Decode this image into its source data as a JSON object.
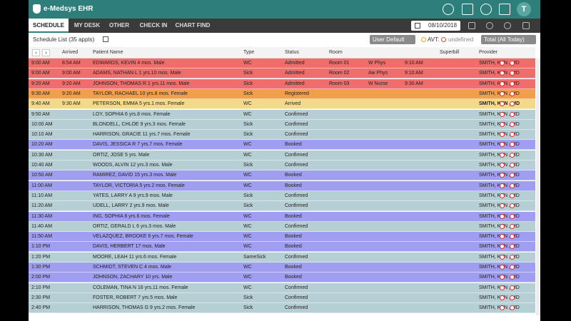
{
  "header": {
    "title": "e-Medsys EHR",
    "user_initial": "T",
    "date": "08/10/2018",
    "tabs": [
      "SCHEDULE",
      "MY DESK",
      "OTHER",
      "CHECK IN",
      "CHART FIND"
    ]
  },
  "toolbar": {
    "list_title": "Schedule List (35 appts)",
    "view": "User Default",
    "avt_label": "AVT:",
    "avt_value": "undefined",
    "filter": "Total (All Today)"
  },
  "columns": {
    "arrived": "Arrived",
    "patient": "Patient Name",
    "type": "Type",
    "status": "Status",
    "room": "Room",
    "superbill": "Superbill",
    "provider": "Provider"
  },
  "rows": [
    {
      "time": "9:00 AM",
      "arrived": "8:54 AM",
      "patient": "EDWARDS, KEVIN 4 mos. Male",
      "type": "WC",
      "status": "Admitted",
      "room": "Room 01",
      "role": "W Phys",
      "room_time": "9:10 AM",
      "provider": "SMITH, KEN , MD"
    },
    {
      "time": "9:00 AM",
      "arrived": "9:00 AM",
      "patient": "ADAMS, NATHAN L 1 yrs.10 mos. Male",
      "type": "Sick",
      "status": "Admitted",
      "room": "Room 02",
      "role": "Aw Phys",
      "room_time": "9:10 AM",
      "provider": "SMITH, KEN , MD"
    },
    {
      "time": "9:20 AM",
      "arrived": "9:20 AM",
      "patient": "JOHNSON, THOMAS R 1 yrs.11 mos. Male",
      "type": "Sick",
      "status": "Admitted",
      "room": "Room 03",
      "role": "W Nurse",
      "room_time": "9:30 AM",
      "provider": "SMITH, KEN , MD"
    },
    {
      "time": "9:30 AM",
      "arrived": "9:20 AM",
      "patient": "TAYLOR, RACHAEL 10 yrs.8 mos. Female",
      "type": "Sick",
      "status": "Registered",
      "provider": "SMITH, KEN , MD"
    },
    {
      "time": "9:40 AM",
      "arrived": "9:30 AM",
      "patient": "PETERSON, EMMA 5 yrs.1 mos. Female",
      "type": "WC",
      "status": "Arrived",
      "provider": "SMITH, KEN , MD"
    },
    {
      "time": "9:50 AM",
      "patient": "LOY, SOPHIA 6 yrs.8 mos. Female",
      "type": "WC",
      "status": "Confirmed",
      "provider": "SMITH, KEN , MD"
    },
    {
      "time": "10:00 AM",
      "patient": "BLONDELL, CHLOE 9 yrs.3 mos. Female",
      "type": "Sick",
      "status": "Confirmed",
      "provider": "SMITH, KEN , MD"
    },
    {
      "time": "10:10 AM",
      "patient": "HARRISON, GRACIE 11 yrs.7 mos. Female",
      "type": "Sick",
      "status": "Confirmed",
      "provider": "SMITH, KEN , MD"
    },
    {
      "time": "10:20 AM",
      "patient": "DAVIS, JESSICA R 7 yrs.7 mos. Female",
      "type": "WC",
      "status": "Booked",
      "provider": "SMITH, KEN , MD"
    },
    {
      "time": "10:30 AM",
      "patient": "ORTIZ, JOSE 5 yrs. Male",
      "type": "WC",
      "status": "Confirmed",
      "provider": "SMITH, KEN , MD"
    },
    {
      "time": "10:40 AM",
      "patient": "WOODS, ALVIN 12 yrs.3 mos. Male",
      "type": "Sick",
      "status": "Confirmed",
      "provider": "SMITH, KEN , MD"
    },
    {
      "time": "10:50 AM",
      "patient": "RAMIREZ, DAVID 15 yrs.3 mos. Male",
      "type": "WC",
      "status": "Booked",
      "provider": "SMITH, KEN , MD"
    },
    {
      "time": "11:00 AM",
      "patient": "TAYLOR, VICTORIA 5 yrs.2 mos. Female",
      "type": "WC",
      "status": "Booked",
      "provider": "SMITH, KEN , MD"
    },
    {
      "time": "11:10 AM",
      "patient": "YATES, LARRY A 9 yrs.9 mos. Male",
      "type": "Sick",
      "status": "Confirmed",
      "provider": "SMITH, KEN , MD"
    },
    {
      "time": "11:20 AM",
      "patient": "UDELL, LARRY 2 yrs.9 mos. Male",
      "type": "Sick",
      "status": "Confirmed",
      "provider": "SMITH, KEN , MD"
    },
    {
      "time": "11:30 AM",
      "patient": "ING, SOPHIA 8 yrs.6 mos. Female",
      "type": "WC",
      "status": "Booked",
      "provider": "SMITH, KEN , MD"
    },
    {
      "time": "11:40 AM",
      "patient": "ORTIZ, GERALD L 6 yrs.3 mos. Male",
      "type": "WC",
      "status": "Confirmed",
      "provider": "SMITH, KEN , MD"
    },
    {
      "time": "11:50 AM",
      "patient": "VELAZQUEZ, BROOKE 6 yrs.7 mos. Female",
      "type": "WC",
      "status": "Booked",
      "provider": "SMITH, KEN , MD"
    },
    {
      "time": "1:10 PM",
      "patient": "DAVIS, HERBERT 17 mos. Male",
      "type": "WC",
      "status": "Booked",
      "provider": "SMITH, KEN , MD"
    },
    {
      "time": "1:20 PM",
      "patient": "MOORE, LEAH 11 yrs.6 mos. Female",
      "type": "SameSick",
      "status": "Confirmed",
      "provider": "SMITH, KEN , MD"
    },
    {
      "time": "1:30 PM",
      "patient": "SCHMIDT, STEVEN C 4 mos. Male",
      "type": "WC",
      "status": "Booked",
      "provider": "SMITH, KEN , MD"
    },
    {
      "time": "2:00 PM",
      "patient": "JOHNSON, ZACHARY 10 yrs. Male",
      "type": "WC",
      "status": "Booked",
      "provider": "SMITH, KEN , MD"
    },
    {
      "time": "2:10 PM",
      "patient": "COLEMAN, TINA N 16 yrs.11 mos. Female",
      "type": "WC",
      "status": "Confirmed",
      "provider": "SMITH, KEN , MD"
    },
    {
      "time": "2:30 PM",
      "patient": "FOSTER, ROBERT 7 yrs.5 mos. Male",
      "type": "Sick",
      "status": "Confirmed",
      "provider": "SMITH, KEN , MD"
    },
    {
      "time": "2:40 PM",
      "patient": "HARRISON, THOMAS G 9 yrs.2 mos. Female",
      "type": "Sick",
      "status": "Confirmed",
      "provider": "SMITH, KEN , MD"
    }
  ]
}
